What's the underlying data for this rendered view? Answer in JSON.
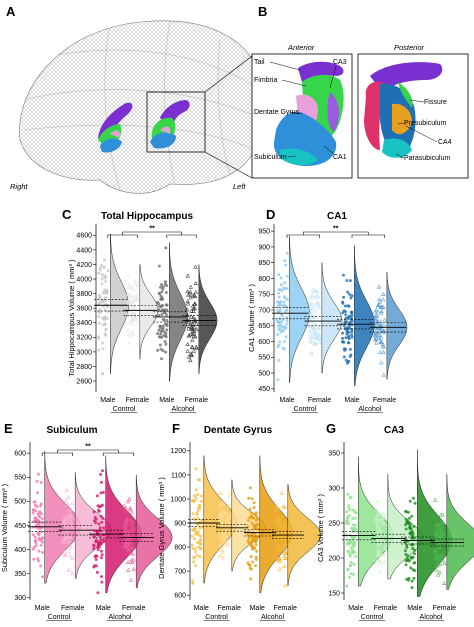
{
  "panel_labels": {
    "A": "A",
    "B": "B",
    "C": "C",
    "D": "D",
    "E": "E",
    "F": "F",
    "G": "G"
  },
  "brain": {
    "right": "Right",
    "left": "Left",
    "anterior": "Anterior",
    "posterior": "Posterior",
    "anterior_labels": [
      "Tail",
      "CA3",
      "Fimbria",
      "Dentate Gyrus",
      "Subiculum",
      "CA1"
    ],
    "posterior_labels": [
      "Fissure",
      "Presubiculum",
      "CA4",
      "Parasubiculum"
    ],
    "colors": {
      "ca1": "#2f8fd8",
      "ca3": "#7a2fd0",
      "dentate": "#e8a0d8",
      "subiculum": "#17c3c3",
      "fimbria": "#37d64a",
      "tail": "#7a2fd0"
    }
  },
  "chart_data": [
    {
      "panel": "C",
      "type": "raincloud",
      "title": "Total Hippocampus",
      "ylabel": "Total Hippocampus Volume ( mm³ )",
      "ylim": [
        2450,
        4700
      ],
      "yticks": [
        2600,
        2800,
        3000,
        3200,
        3400,
        3600,
        3800,
        4000,
        4200,
        4400,
        4600
      ],
      "groups": [
        "Control",
        "Alcohol"
      ],
      "sexes": [
        "Male",
        "Female"
      ],
      "significance": "**",
      "series": [
        {
          "group": "Control",
          "sex": "Male",
          "mean": 3640,
          "ci": [
            3560,
            3720
          ],
          "range": [
            2700,
            4620
          ],
          "color": "#c9c9c9",
          "marker": "circle"
        },
        {
          "group": "Control",
          "sex": "Female",
          "mean": 3570,
          "ci": [
            3500,
            3640
          ],
          "range": [
            2900,
            4200
          ],
          "color": "#e6e6e6",
          "marker": "triangle"
        },
        {
          "group": "Alcohol",
          "sex": "Male",
          "mean": 3480,
          "ci": [
            3410,
            3550
          ],
          "range": [
            2600,
            4500
          ],
          "color": "#707070",
          "marker": "circle"
        },
        {
          "group": "Alcohol",
          "sex": "Female",
          "mean": 3430,
          "ci": [
            3360,
            3500
          ],
          "range": [
            2700,
            4200
          ],
          "color": "#3a3a3a",
          "marker": "triangle"
        }
      ]
    },
    {
      "panel": "D",
      "type": "raincloud",
      "title": "CA1",
      "ylabel": "CA1 Volume ( mm³ )",
      "ylim": [
        440,
        960
      ],
      "yticks": [
        450,
        500,
        550,
        600,
        650,
        700,
        750,
        800,
        850,
        900,
        950
      ],
      "groups": [
        "Control",
        "Alcohol"
      ],
      "sexes": [
        "Male",
        "Female"
      ],
      "significance": "**",
      "series": [
        {
          "group": "Control",
          "sex": "Male",
          "mean": 690,
          "ci": [
            672,
            708
          ],
          "range": [
            470,
            935
          ],
          "color": "#8ecbf2",
          "marker": "circle"
        },
        {
          "group": "Control",
          "sex": "Female",
          "mean": 665,
          "ci": [
            650,
            680
          ],
          "range": [
            500,
            850
          ],
          "color": "#c4e3f7",
          "marker": "triangle"
        },
        {
          "group": "Alcohol",
          "sex": "Male",
          "mean": 655,
          "ci": [
            640,
            670
          ],
          "range": [
            460,
            905
          ],
          "color": "#1f6fb4",
          "marker": "circle"
        },
        {
          "group": "Alcohol",
          "sex": "Female",
          "mean": 645,
          "ci": [
            630,
            660
          ],
          "range": [
            480,
            820
          ],
          "color": "#5b9bd1",
          "marker": "triangle"
        }
      ]
    },
    {
      "panel": "E",
      "type": "raincloud",
      "title": "Subiculum",
      "ylabel": "Subiculum Volume ( mm³ )",
      "ylim": [
        295,
        615
      ],
      "yticks": [
        300,
        350,
        400,
        450,
        500,
        550,
        600
      ],
      "groups": [
        "Control",
        "Alcohol"
      ],
      "sexes": [
        "Male",
        "Female"
      ],
      "significance": "**",
      "series": [
        {
          "group": "Control",
          "sex": "Male",
          "mean": 447,
          "ci": [
            437,
            457
          ],
          "range": [
            330,
            605
          ],
          "color": "#f07bb0",
          "marker": "circle"
        },
        {
          "group": "Control",
          "sex": "Female",
          "mean": 440,
          "ci": [
            430,
            450
          ],
          "range": [
            340,
            560
          ],
          "color": "#f6b2d0",
          "marker": "triangle"
        },
        {
          "group": "Alcohol",
          "sex": "Male",
          "mean": 432,
          "ci": [
            424,
            440
          ],
          "range": [
            310,
            595
          ],
          "color": "#d4186e",
          "marker": "circle"
        },
        {
          "group": "Alcohol",
          "sex": "Female",
          "mean": 425,
          "ci": [
            417,
            433
          ],
          "range": [
            320,
            555
          ],
          "color": "#e55a97",
          "marker": "triangle"
        }
      ]
    },
    {
      "panel": "F",
      "type": "raincloud",
      "title": "Dentate Gyrus",
      "ylabel": "Dentate Gyrus Volume ( mm³ )",
      "ylim": [
        580,
        1220
      ],
      "yticks": [
        600,
        700,
        800,
        900,
        1000,
        1100,
        1200
      ],
      "groups": [
        "Control",
        "Alcohol"
      ],
      "sexes": [
        "Male",
        "Female"
      ],
      "significance": "",
      "series": [
        {
          "group": "Control",
          "sex": "Male",
          "mean": 900,
          "ci": [
            885,
            915
          ],
          "range": [
            650,
            1180
          ],
          "color": "#f7c14a",
          "marker": "circle"
        },
        {
          "group": "Control",
          "sex": "Female",
          "mean": 880,
          "ci": [
            866,
            894
          ],
          "range": [
            700,
            1080
          ],
          "color": "#fbdc95",
          "marker": "triangle"
        },
        {
          "group": "Alcohol",
          "sex": "Male",
          "mean": 860,
          "ci": [
            846,
            874
          ],
          "range": [
            610,
            1180
          ],
          "color": "#e89b0c",
          "marker": "circle"
        },
        {
          "group": "Alcohol",
          "sex": "Female",
          "mean": 850,
          "ci": [
            836,
            864
          ],
          "range": [
            640,
            1060
          ],
          "color": "#f2b93a",
          "marker": "triangle"
        }
      ]
    },
    {
      "panel": "G",
      "type": "raincloud",
      "title": "CA3",
      "ylabel": "CA3 Volume ( mm³ )",
      "ylim": [
        140,
        360
      ],
      "yticks": [
        150,
        200,
        250,
        300,
        350
      ],
      "groups": [
        "Control",
        "Alcohol"
      ],
      "sexes": [
        "Male",
        "Female"
      ],
      "significance": "",
      "series": [
        {
          "group": "Control",
          "sex": "Male",
          "mean": 232,
          "ci": [
            226,
            238
          ],
          "range": [
            160,
            345
          ],
          "color": "#8ee28e",
          "marker": "circle"
        },
        {
          "group": "Control",
          "sex": "Female",
          "mean": 228,
          "ci": [
            222,
            234
          ],
          "range": [
            170,
            320
          ],
          "color": "#c6f0c6",
          "marker": "triangle"
        },
        {
          "group": "Alcohol",
          "sex": "Male",
          "mean": 225,
          "ci": [
            220,
            230
          ],
          "range": [
            145,
            355
          ],
          "color": "#1e8c1e",
          "marker": "circle"
        },
        {
          "group": "Alcohol",
          "sex": "Female",
          "mean": 222,
          "ci": [
            217,
            227
          ],
          "range": [
            155,
            320
          ],
          "color": "#4fb84f",
          "marker": "triangle"
        }
      ]
    }
  ]
}
